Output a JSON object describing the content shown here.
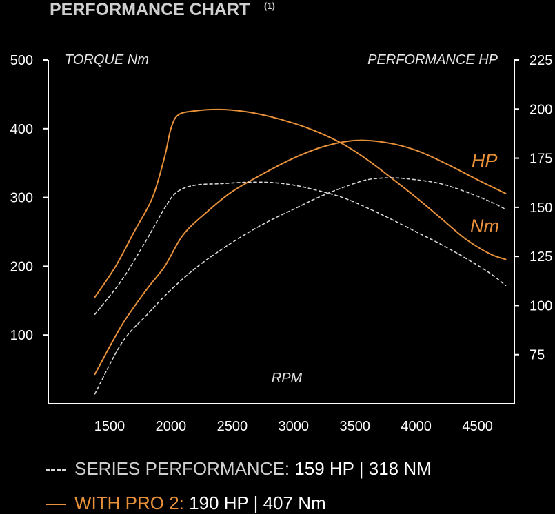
{
  "header": {
    "title": "PERFORMANCE CHART",
    "footnote": "(1)"
  },
  "chart_data": {
    "type": "line",
    "xlabel": "RPM",
    "ylabel_left": "TORQUE Nm",
    "ylabel_right": "PERFORMANCE HP",
    "x_ticks": [
      1500,
      2000,
      2500,
      3000,
      3500,
      4000,
      4500
    ],
    "y_left_ticks": [
      100,
      200,
      300,
      400,
      500
    ],
    "y_right_ticks": [
      75,
      100,
      125,
      150,
      175,
      200,
      225
    ],
    "xlim": [
      1000,
      4800
    ],
    "ylim_left": [
      0,
      500
    ],
    "ylim_right": [
      50,
      225
    ],
    "series_tags": {
      "hp": "HP",
      "nm": "Nm"
    },
    "colors": {
      "pro": "#e8913a",
      "series": "#d8d8d8"
    },
    "series": [
      {
        "group": "pro",
        "unit": "hp",
        "axis": "right",
        "points": [
          [
            1380,
            65
          ],
          [
            1600,
            90
          ],
          [
            1800,
            108
          ],
          [
            1950,
            120
          ],
          [
            2100,
            136
          ],
          [
            2300,
            148
          ],
          [
            2500,
            158
          ],
          [
            2750,
            167
          ],
          [
            3000,
            175
          ],
          [
            3250,
            181
          ],
          [
            3500,
            184
          ],
          [
            3750,
            183
          ],
          [
            4000,
            179
          ],
          [
            4250,
            172
          ],
          [
            4500,
            164
          ],
          [
            4730,
            157
          ]
        ]
      },
      {
        "group": "pro",
        "unit": "nm",
        "axis": "left",
        "points": [
          [
            1380,
            155
          ],
          [
            1550,
            200
          ],
          [
            1700,
            250
          ],
          [
            1850,
            300
          ],
          [
            1950,
            360
          ],
          [
            2000,
            400
          ],
          [
            2060,
            420
          ],
          [
            2200,
            426
          ],
          [
            2400,
            428
          ],
          [
            2600,
            425
          ],
          [
            2800,
            418
          ],
          [
            3000,
            408
          ],
          [
            3200,
            395
          ],
          [
            3400,
            378
          ],
          [
            3600,
            355
          ],
          [
            3800,
            328
          ],
          [
            4000,
            300
          ],
          [
            4200,
            270
          ],
          [
            4400,
            240
          ],
          [
            4600,
            218
          ],
          [
            4730,
            210
          ]
        ]
      },
      {
        "group": "series",
        "unit": "hp",
        "axis": "right",
        "points": [
          [
            1380,
            55
          ],
          [
            1600,
            81
          ],
          [
            1800,
            95
          ],
          [
            2000,
            108
          ],
          [
            2200,
            119
          ],
          [
            2400,
            128
          ],
          [
            2600,
            136
          ],
          [
            2800,
            143
          ],
          [
            3000,
            149
          ],
          [
            3200,
            155
          ],
          [
            3400,
            160
          ],
          [
            3600,
            164
          ],
          [
            3800,
            165
          ],
          [
            4000,
            164
          ],
          [
            4200,
            162
          ],
          [
            4400,
            158
          ],
          [
            4600,
            153
          ],
          [
            4730,
            149
          ]
        ]
      },
      {
        "group": "series",
        "unit": "nm",
        "axis": "left",
        "points": [
          [
            1380,
            130
          ],
          [
            1600,
            180
          ],
          [
            1800,
            238
          ],
          [
            1950,
            285
          ],
          [
            2050,
            308
          ],
          [
            2200,
            318
          ],
          [
            2400,
            320
          ],
          [
            2600,
            322
          ],
          [
            2800,
            322
          ],
          [
            3000,
            318
          ],
          [
            3200,
            310
          ],
          [
            3400,
            300
          ],
          [
            3600,
            285
          ],
          [
            3800,
            268
          ],
          [
            4000,
            250
          ],
          [
            4200,
            232
          ],
          [
            4400,
            212
          ],
          [
            4600,
            190
          ],
          [
            4730,
            172
          ]
        ]
      }
    ]
  },
  "legend": {
    "series_label": "SERIES PERFORMANCE:",
    "series_value": "159 HP | 318 NM",
    "pro_label": "WITH PRO 2:",
    "pro_value": "190 HP | 407 Nm"
  }
}
